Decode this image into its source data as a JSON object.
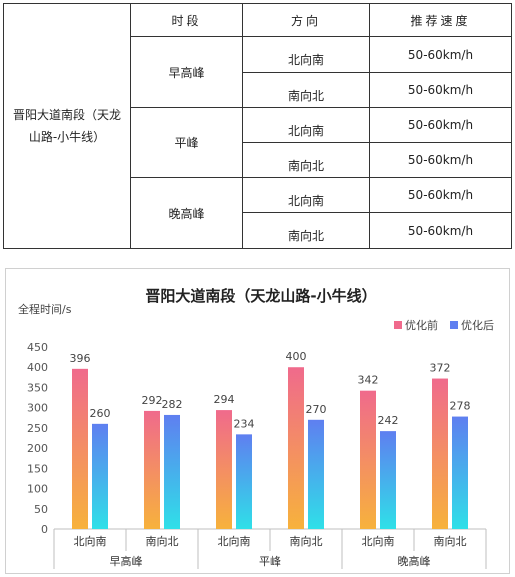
{
  "table": {
    "road": "晋阳大道南段（天龙山路-小牛线）",
    "headers": {
      "period": "时段",
      "direction": "方向",
      "speed": "推荐速度"
    },
    "rows": [
      {
        "period": "早高峰",
        "items": [
          {
            "direction": "北向南",
            "speed": "50-60km/h"
          },
          {
            "direction": "南向北",
            "speed": "50-60km/h"
          }
        ]
      },
      {
        "period": "平峰",
        "items": [
          {
            "direction": "北向南",
            "speed": "50-60km/h"
          },
          {
            "direction": "南向北",
            "speed": "50-60km/h"
          }
        ]
      },
      {
        "period": "晚高峰",
        "items": [
          {
            "direction": "北向南",
            "speed": "50-60km/h"
          },
          {
            "direction": "南向北",
            "speed": "50-60km/h"
          }
        ]
      }
    ]
  },
  "chart_data": {
    "type": "bar",
    "title": "晋阳大道南段（天龙山路-小牛线）",
    "ylabel": "全程时间/s",
    "xlabel": "",
    "ylim": [
      0,
      450
    ],
    "yticks": [
      0,
      50,
      100,
      150,
      200,
      250,
      300,
      350,
      400,
      450
    ],
    "grid": false,
    "legend_position": "top-right",
    "categories": [
      "北向南",
      "南向北",
      "北向南",
      "南向北",
      "北向南",
      "南向北"
    ],
    "groups": [
      {
        "label": "早高峰",
        "span": 2
      },
      {
        "label": "平峰",
        "span": 2
      },
      {
        "label": "晚高峰",
        "span": 2
      }
    ],
    "series": [
      {
        "name": "优化前",
        "values": [
          396,
          292,
          294,
          400,
          342,
          372
        ],
        "color_top": "#f06a8c",
        "color_bottom": "#f7b23c"
      },
      {
        "name": "优化后",
        "values": [
          260,
          282,
          234,
          270,
          242,
          278
        ],
        "color_top": "#5f7ff0",
        "color_bottom": "#2fe0e8"
      }
    ]
  }
}
